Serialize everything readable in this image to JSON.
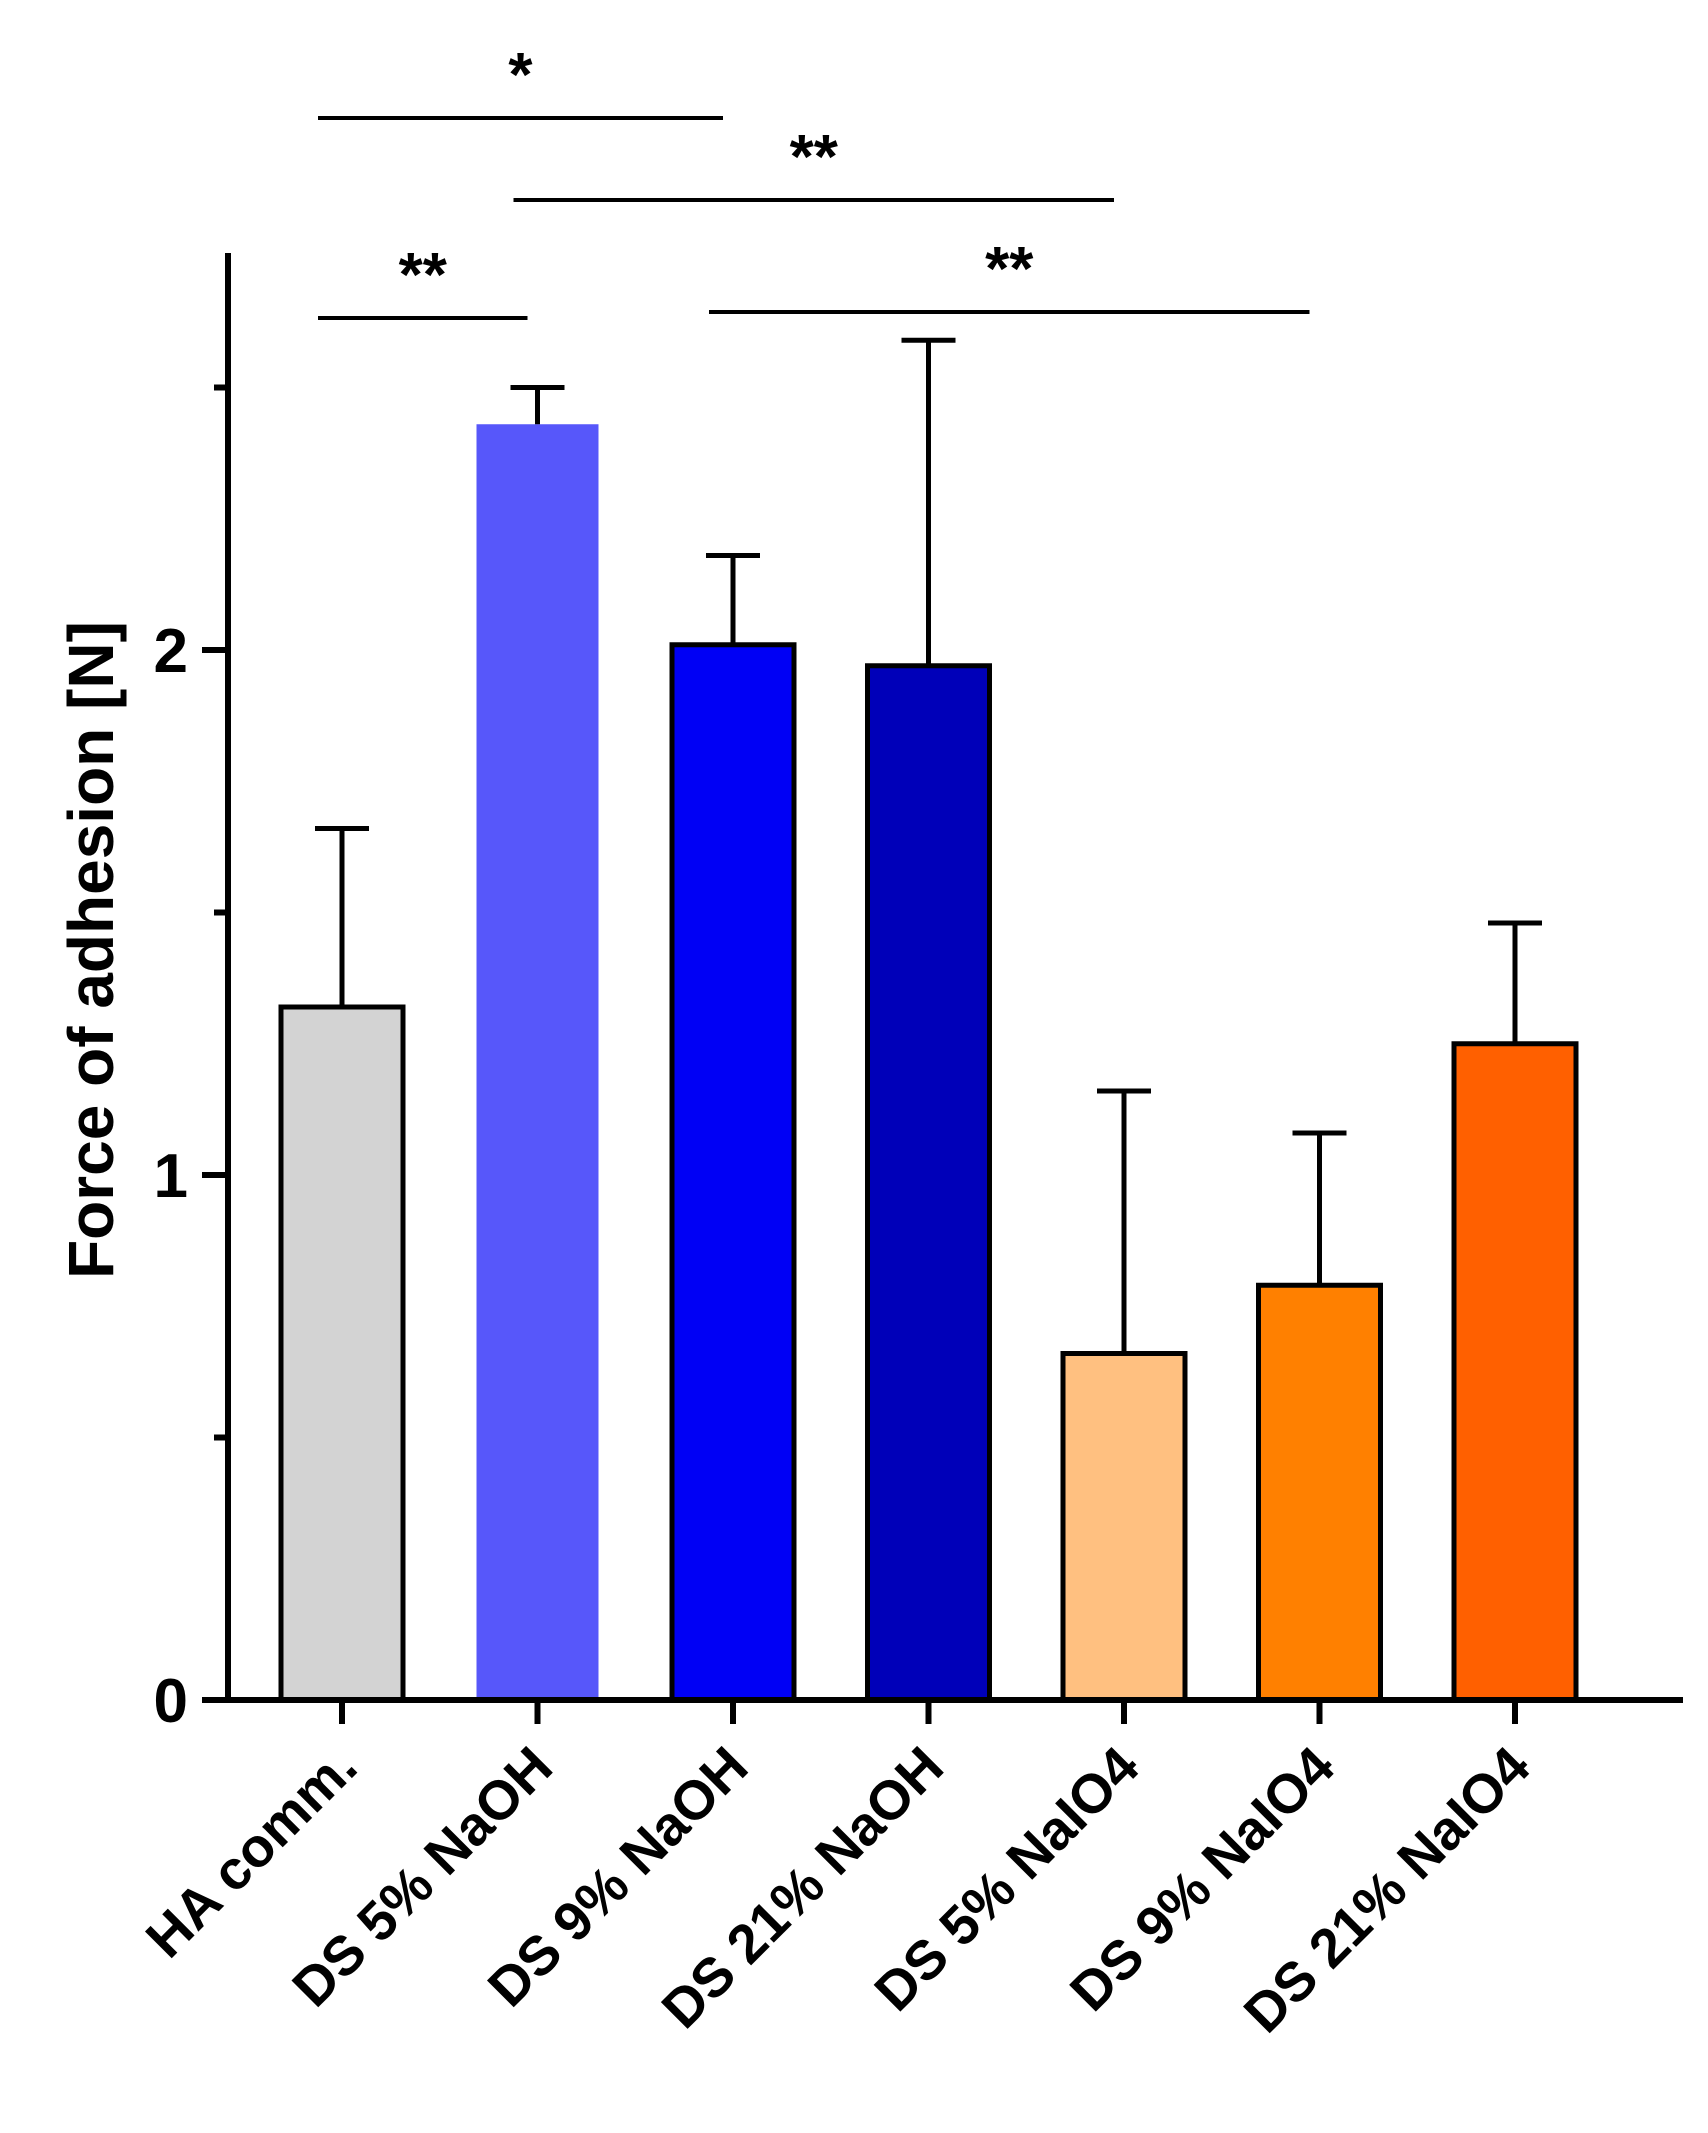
{
  "chart_data": {
    "type": "bar",
    "title": "",
    "xlabel": "",
    "ylabel": "Force of adhesion [N]",
    "ylim": [
      0,
      2.76
    ],
    "yticks": [
      0,
      1,
      2
    ],
    "yticks_minor": [
      0.5,
      1.5,
      2.5
    ],
    "grid": false,
    "categories": [
      "HA comm.",
      "DS 5% NaOH",
      "DS 9% NaOH",
      "DS 21% NaOH",
      "DS 5% NaIO4",
      "DS 9% NaIO4",
      "DS 21% NaIO4"
    ],
    "values": [
      1.32,
      2.43,
      2.01,
      1.97,
      0.66,
      0.79,
      1.25
    ],
    "errors": [
      0.34,
      0.07,
      0.17,
      0.62,
      0.5,
      0.29,
      0.23
    ],
    "colors": [
      "#d3d3d3",
      "#5757fa",
      "#0000f5",
      "#0000b9",
      "#ffc080",
      "#ff8000",
      "#ff6000"
    ],
    "outlined": [
      true,
      false,
      true,
      true,
      true,
      true,
      true
    ],
    "significance": [
      {
        "from": 0,
        "to": 2,
        "label": "*"
      },
      {
        "from": 1,
        "to": 4,
        "label": "**"
      },
      {
        "from": 0,
        "to": 1,
        "label": "**"
      },
      {
        "from": 2,
        "to": 5,
        "label": "**"
      }
    ]
  }
}
